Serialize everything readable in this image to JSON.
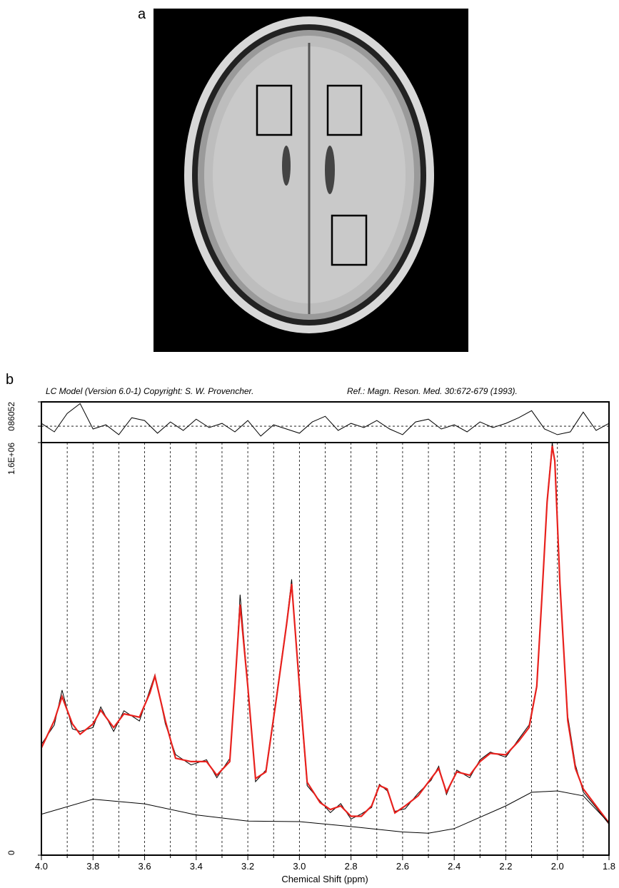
{
  "figure": {
    "panel_a_label": "a",
    "panel_b_label": "b"
  },
  "chart_data": [
    {
      "type": "line",
      "title": "LC Model (Version 6.0-1) Copyright: S. W. Provencher.",
      "subtitle": "Ref.: Magn. Reson. Med. 30:672-679 (1993).",
      "xlim": [
        4.0,
        1.8
      ],
      "ylim": [
        -58000,
        86052
      ],
      "yticks": [
        0,
        86052
      ],
      "grid": "y",
      "series": [
        {
          "color": "#000000",
          "x": [
            4.0,
            3.95,
            3.9,
            3.85,
            3.8,
            3.75,
            3.7,
            3.65,
            3.6,
            3.55,
            3.5,
            3.45,
            3.4,
            3.35,
            3.3,
            3.25,
            3.2,
            3.15,
            3.1,
            3.05,
            3.0,
            2.95,
            2.9,
            2.85,
            2.8,
            2.75,
            2.7,
            2.65,
            2.6,
            2.55,
            2.5,
            2.45,
            2.4,
            2.35,
            2.3,
            2.25,
            2.2,
            2.15,
            2.1,
            2.05,
            2.0,
            1.95,
            1.9,
            1.85,
            1.8
          ],
          "values": [
            10000,
            -20000,
            45000,
            80000,
            -10000,
            5000,
            -30000,
            30000,
            20000,
            -25000,
            15000,
            -15000,
            25000,
            -5000,
            10000,
            -20000,
            20000,
            -35000,
            5000,
            -10000,
            -25000,
            15000,
            35000,
            -15000,
            10000,
            -5000,
            20000,
            -10000,
            -30000,
            15000,
            25000,
            -10000,
            5000,
            -20000,
            15000,
            -5000,
            10000,
            30000,
            55000,
            -10000,
            -30000,
            -20000,
            50000,
            -15000,
            10000
          ]
        }
      ]
    },
    {
      "type": "line",
      "xlabel": "Chemical Shift (ppm)",
      "xlim": [
        4.0,
        1.8
      ],
      "ylim": [
        0,
        1600000
      ],
      "xticks": [
        {
          "value": 4,
          "label": "4.0"
        },
        3.8,
        3.6,
        3.4,
        3.2,
        {
          "value": 3,
          "label": "3.0"
        },
        2.8,
        2.6,
        2.4,
        2.2,
        {
          "value": 2,
          "label": "2.0"
        },
        1.8
      ],
      "minor_xticks": [
        3.9,
        3.7,
        3.5,
        3.3,
        3.1,
        2.9,
        2.7,
        2.5,
        2.3,
        2.1,
        1.9
      ],
      "yticks": [
        0,
        {
          "value": 1600000,
          "label": "1.6E+06"
        }
      ],
      "grid": "x",
      "series": [
        {
          "color": "#000000",
          "x": [
            4.0,
            3.95,
            3.92,
            3.88,
            3.85,
            3.8,
            3.77,
            3.72,
            3.68,
            3.62,
            3.58,
            3.56,
            3.52,
            3.48,
            3.42,
            3.36,
            3.32,
            3.27,
            3.25,
            3.23,
            3.2,
            3.17,
            3.13,
            3.09,
            3.05,
            3.03,
            3.0,
            2.97,
            2.92,
            2.88,
            2.84,
            2.8,
            2.76,
            2.72,
            2.69,
            2.66,
            2.63,
            2.59,
            2.54,
            2.49,
            2.46,
            2.43,
            2.39,
            2.34,
            2.3,
            2.26,
            2.2,
            2.15,
            2.11,
            2.08,
            2.06,
            2.04,
            2.02,
            2.01,
            1.99,
            1.96,
            1.93,
            1.9,
            1.85,
            1.8
          ],
          "values": [
            430000,
            505000,
            640000,
            490000,
            480000,
            495000,
            575000,
            480000,
            560000,
            520000,
            640000,
            700000,
            510000,
            390000,
            350000,
            370000,
            300000,
            375000,
            640000,
            1010000,
            660000,
            285000,
            330000,
            610000,
            900000,
            1070000,
            640000,
            270000,
            210000,
            165000,
            200000,
            140000,
            160000,
            185000,
            275000,
            250000,
            170000,
            180000,
            240000,
            290000,
            345000,
            235000,
            330000,
            300000,
            370000,
            400000,
            380000,
            450000,
            505000,
            660000,
            1010000,
            1380000,
            1600000,
            1520000,
            1040000,
            540000,
            350000,
            245000,
            185000,
            120000
          ]
        },
        {
          "color": "#e8211d",
          "x": [
            4.0,
            3.95,
            3.92,
            3.88,
            3.85,
            3.8,
            3.77,
            3.72,
            3.68,
            3.62,
            3.58,
            3.56,
            3.52,
            3.48,
            3.42,
            3.36,
            3.32,
            3.27,
            3.25,
            3.23,
            3.2,
            3.17,
            3.13,
            3.09,
            3.05,
            3.03,
            3.0,
            2.97,
            2.92,
            2.88,
            2.84,
            2.8,
            2.76,
            2.72,
            2.69,
            2.66,
            2.63,
            2.59,
            2.54,
            2.49,
            2.46,
            2.43,
            2.39,
            2.34,
            2.3,
            2.26,
            2.2,
            2.15,
            2.11,
            2.08,
            2.06,
            2.04,
            2.02,
            2.01,
            1.99,
            1.96,
            1.93,
            1.9,
            1.85,
            1.8
          ],
          "values": [
            416000,
            522000,
            615000,
            509000,
            469000,
            509000,
            562000,
            495000,
            548000,
            535000,
            628000,
            694000,
            522000,
            376000,
            363000,
            363000,
            310000,
            363000,
            654000,
            972000,
            654000,
            297000,
            323000,
            601000,
            893000,
            1052000,
            654000,
            283000,
            204000,
            177000,
            191000,
            151000,
            151000,
            191000,
            270000,
            257000,
            164000,
            191000,
            230000,
            297000,
            336000,
            244000,
            323000,
            310000,
            363000,
            395000,
            389000,
            442000,
            495000,
            654000,
            999000,
            1370000,
            1587000,
            1528000,
            1052000,
            522000,
            336000,
            257000,
            191000,
            125000
          ]
        },
        {
          "color": "#000000",
          "x": [
            4.0,
            3.8,
            3.6,
            3.4,
            3.2,
            3.0,
            2.8,
            2.6,
            2.5,
            2.4,
            2.2,
            2.1,
            2.0,
            1.9,
            1.8
          ],
          "values": [
            159000,
            217000,
            199000,
            156000,
            132000,
            130000,
            111000,
            90000,
            85000,
            103000,
            191000,
            244000,
            249000,
            230000,
            125000
          ]
        }
      ]
    }
  ]
}
